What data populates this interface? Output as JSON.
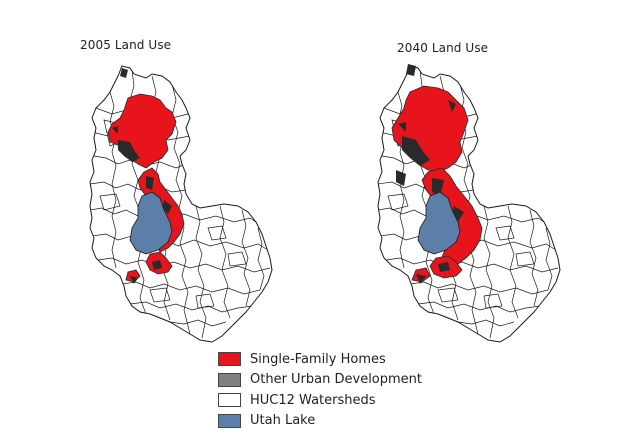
{
  "maps": [
    {
      "title": "2005 Land Use"
    },
    {
      "title": "2040 Land Use"
    }
  ],
  "legend": {
    "items": [
      {
        "label": "Single-Family Homes",
        "color": "#e8141c"
      },
      {
        "label": "Other Urban Development",
        "color": "#808080"
      },
      {
        "label": "HUC12 Watersheds",
        "color": "#ffffff"
      },
      {
        "label": "Utah Lake",
        "color": "#5b7fa8"
      }
    ]
  },
  "colors": {
    "single_family": "#e8141c",
    "urban_dark": "#2a2a2a",
    "lake": "#5b7fa8",
    "boundary": "#1a1a1a"
  }
}
